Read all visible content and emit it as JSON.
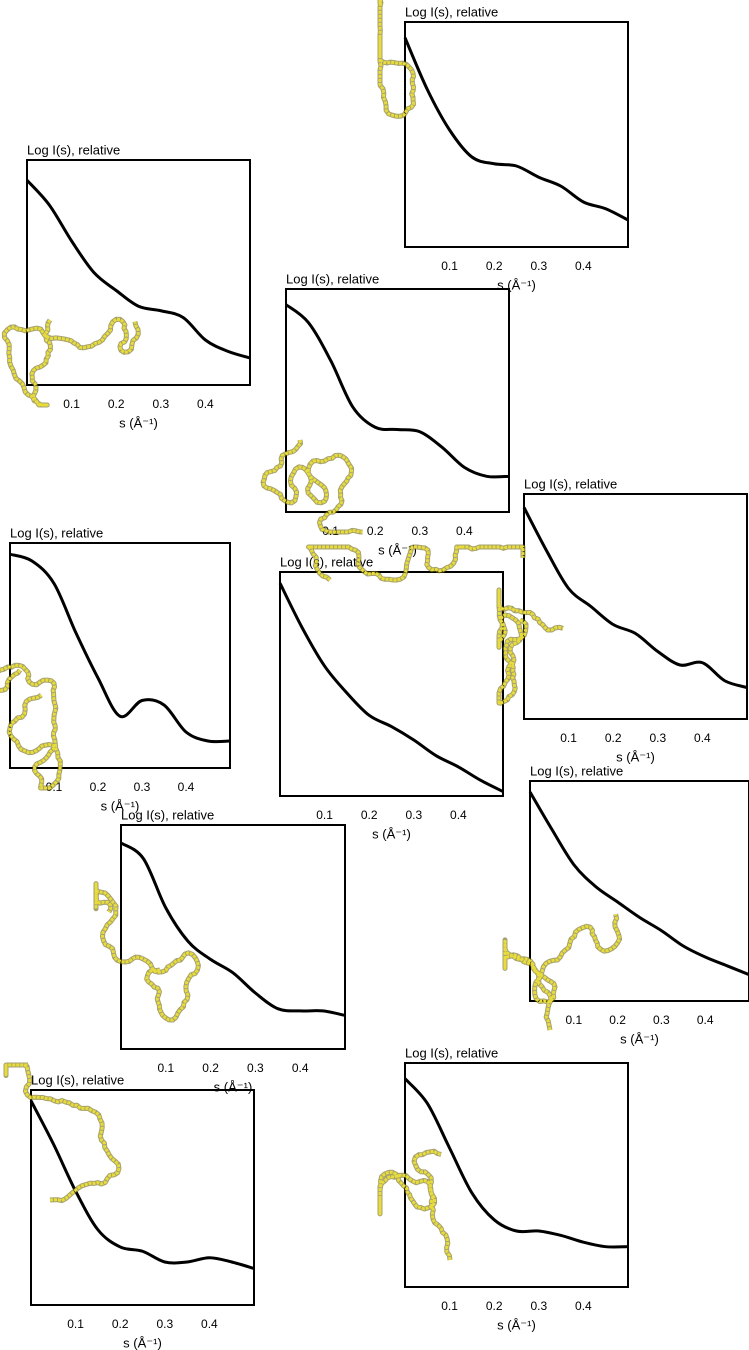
{
  "chart_data": [
    {
      "type": "line",
      "title": "Log I(s), relative",
      "x_label": "s (Å⁻¹)",
      "x": [
        0,
        0.05,
        0.1,
        0.15,
        0.2,
        0.25,
        0.3,
        0.35,
        0.4,
        0.45,
        0.5
      ],
      "values": [
        0.93,
        0.7,
        0.52,
        0.4,
        0.37,
        0.36,
        0.31,
        0.27,
        0.2,
        0.17,
        0.12
      ],
      "color": "#000000",
      "xlim": [
        0,
        0.5
      ],
      "ylim": [
        0,
        1
      ],
      "xticks": [
        0.1,
        0.2,
        0.3,
        0.4
      ]
    },
    {
      "type": "line",
      "title": "Log I(s), relative",
      "x_label": "s (Å⁻¹)",
      "x": [
        0,
        0.05,
        0.1,
        0.15,
        0.2,
        0.25,
        0.3,
        0.35,
        0.4,
        0.45,
        0.5
      ],
      "values": [
        0.91,
        0.8,
        0.64,
        0.5,
        0.42,
        0.35,
        0.33,
        0.3,
        0.2,
        0.15,
        0.12
      ],
      "color": "#000000",
      "xlim": [
        0,
        0.5
      ],
      "ylim": [
        0,
        1
      ],
      "xticks": [
        0.1,
        0.2,
        0.3,
        0.4
      ]
    },
    {
      "type": "line",
      "title": "Log I(s), relative",
      "x_label": "s (Å⁻¹)",
      "x": [
        0,
        0.05,
        0.1,
        0.15,
        0.2,
        0.25,
        0.3,
        0.35,
        0.4,
        0.45,
        0.5
      ],
      "values": [
        0.93,
        0.85,
        0.68,
        0.47,
        0.38,
        0.37,
        0.36,
        0.29,
        0.2,
        0.16,
        0.16
      ],
      "color": "#000000",
      "xlim": [
        0,
        0.5
      ],
      "ylim": [
        0,
        1
      ],
      "xticks": [
        0.1,
        0.2,
        0.3,
        0.4
      ]
    },
    {
      "type": "line",
      "title": "Log I(s), relative",
      "x_label": "s (Å⁻¹)",
      "x": [
        0,
        0.05,
        0.1,
        0.15,
        0.2,
        0.25,
        0.3,
        0.35,
        0.4,
        0.45,
        0.5
      ],
      "values": [
        0.94,
        0.75,
        0.58,
        0.5,
        0.42,
        0.38,
        0.3,
        0.24,
        0.25,
        0.17,
        0.14
      ],
      "color": "#000000",
      "xlim": [
        0,
        0.5
      ],
      "ylim": [
        0,
        1
      ],
      "xticks": [
        0.1,
        0.2,
        0.3,
        0.4
      ]
    },
    {
      "type": "line",
      "title": "Log I(s), relative",
      "x_label": "s (Å⁻¹)",
      "x": [
        0,
        0.05,
        0.1,
        0.15,
        0.2,
        0.25,
        0.3,
        0.35,
        0.4,
        0.45,
        0.5
      ],
      "values": [
        0.95,
        0.92,
        0.82,
        0.6,
        0.4,
        0.23,
        0.3,
        0.28,
        0.16,
        0.12,
        0.12
      ],
      "color": "#000000",
      "xlim": [
        0,
        0.5
      ],
      "ylim": [
        0,
        1
      ],
      "xticks": [
        0.1,
        0.2,
        0.3,
        0.4
      ]
    },
    {
      "type": "line",
      "title": "Log I(s), relative",
      "x_label": "s (Å⁻¹)",
      "x": [
        0,
        0.05,
        0.1,
        0.15,
        0.2,
        0.25,
        0.3,
        0.35,
        0.4,
        0.45,
        0.5
      ],
      "values": [
        0.95,
        0.75,
        0.58,
        0.46,
        0.36,
        0.31,
        0.25,
        0.18,
        0.13,
        0.07,
        0.02
      ],
      "color": "#000000",
      "xlim": [
        0,
        0.5
      ],
      "ylim": [
        0,
        1
      ],
      "xticks": [
        0.1,
        0.2,
        0.3,
        0.4
      ]
    },
    {
      "type": "line",
      "title": "Log I(s), relative",
      "x_label": "s (Å⁻¹)",
      "x": [
        0,
        0.05,
        0.1,
        0.15,
        0.2,
        0.25,
        0.3,
        0.35,
        0.4,
        0.45,
        0.5
      ],
      "values": [
        0.95,
        0.78,
        0.62,
        0.52,
        0.45,
        0.38,
        0.32,
        0.25,
        0.2,
        0.16,
        0.12
      ],
      "color": "#000000",
      "xlim": [
        0,
        0.5
      ],
      "ylim": [
        0,
        1
      ],
      "xticks": [
        0.1,
        0.2,
        0.3,
        0.4
      ]
    },
    {
      "type": "line",
      "title": "Log I(s), relative",
      "x_label": "s (Å⁻¹)",
      "x": [
        0,
        0.05,
        0.1,
        0.15,
        0.2,
        0.25,
        0.3,
        0.35,
        0.4,
        0.45,
        0.5
      ],
      "values": [
        0.92,
        0.85,
        0.63,
        0.48,
        0.4,
        0.34,
        0.25,
        0.18,
        0.17,
        0.17,
        0.15
      ],
      "color": "#000000",
      "xlim": [
        0,
        0.5
      ],
      "ylim": [
        0,
        1
      ],
      "xticks": [
        0.1,
        0.2,
        0.3,
        0.4
      ]
    },
    {
      "type": "line",
      "title": "Log I(s), relative",
      "x_label": "s (Å⁻¹)",
      "x": [
        0,
        0.05,
        0.1,
        0.15,
        0.2,
        0.25,
        0.3,
        0.35,
        0.4,
        0.45,
        0.5
      ],
      "values": [
        0.95,
        0.75,
        0.53,
        0.35,
        0.27,
        0.25,
        0.2,
        0.2,
        0.22,
        0.2,
        0.17
      ],
      "color": "#000000",
      "xlim": [
        0,
        0.5
      ],
      "ylim": [
        0,
        1
      ],
      "xticks": [
        0.1,
        0.2,
        0.3,
        0.4
      ]
    },
    {
      "type": "line",
      "title": "Log I(s), relative",
      "x_label": "s (Å⁻¹)",
      "x": [
        0,
        0.05,
        0.1,
        0.15,
        0.2,
        0.25,
        0.3,
        0.35,
        0.4,
        0.45,
        0.5
      ],
      "values": [
        0.93,
        0.82,
        0.62,
        0.42,
        0.3,
        0.25,
        0.25,
        0.23,
        0.2,
        0.18,
        0.18
      ],
      "color": "#000000",
      "xlim": [
        0,
        0.5
      ],
      "ylim": [
        0,
        1
      ],
      "xticks": [
        0.1,
        0.2,
        0.3,
        0.4
      ]
    }
  ]
}
